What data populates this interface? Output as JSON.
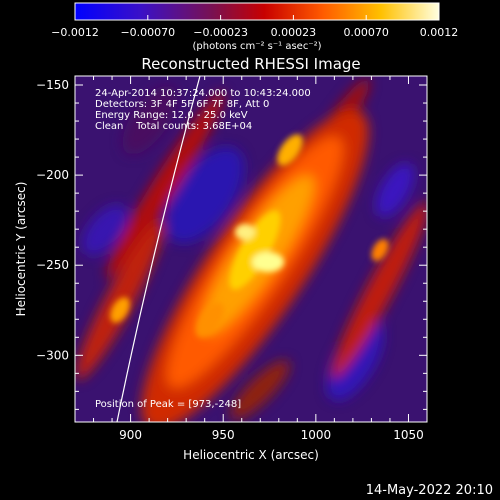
{
  "colorbar": {
    "ticks": [
      "-0.0012",
      "-0.00070",
      "-0.00023",
      "0.00023",
      "0.00070",
      "0.0012"
    ],
    "unit_label": "(photons cm⁻² s⁻¹ asec⁻²)",
    "range": [
      -0.0012,
      0.0012
    ],
    "colormap": "red-temperature (blue → purple → red → orange → yellow → white)"
  },
  "chart_data": {
    "type": "heatmap",
    "title": "Reconstructed RHESSI Image",
    "xlabel": "Heliocentric X (arcsec)",
    "ylabel": "Heliocentric Y (arcsec)",
    "xlim": [
      870,
      1060
    ],
    "ylim": [
      -337,
      -145
    ],
    "xticks": [
      900,
      950,
      1000,
      1050
    ],
    "yticks": [
      -150,
      -200,
      -250,
      -300
    ],
    "annotations": [
      "24-Apr-2014 10:37:24.000 to 10:43:24.000",
      "Detectors: 3F 4F 5F 6F 7F 8F, Att 0",
      "Energy Range: 12.0 - 25.0 keV",
      "Clean    Total counts: 3.68E+04"
    ],
    "peak_label": "Position of Peak = [973,-248]",
    "peak": {
      "x": 973,
      "y": -248
    },
    "limb_curve": "solar limb overlay (white line)",
    "colors": {
      "background": "#000000",
      "limb": "#ffffff"
    }
  },
  "footer": {
    "timestamp": "14-May-2022 20:10"
  }
}
